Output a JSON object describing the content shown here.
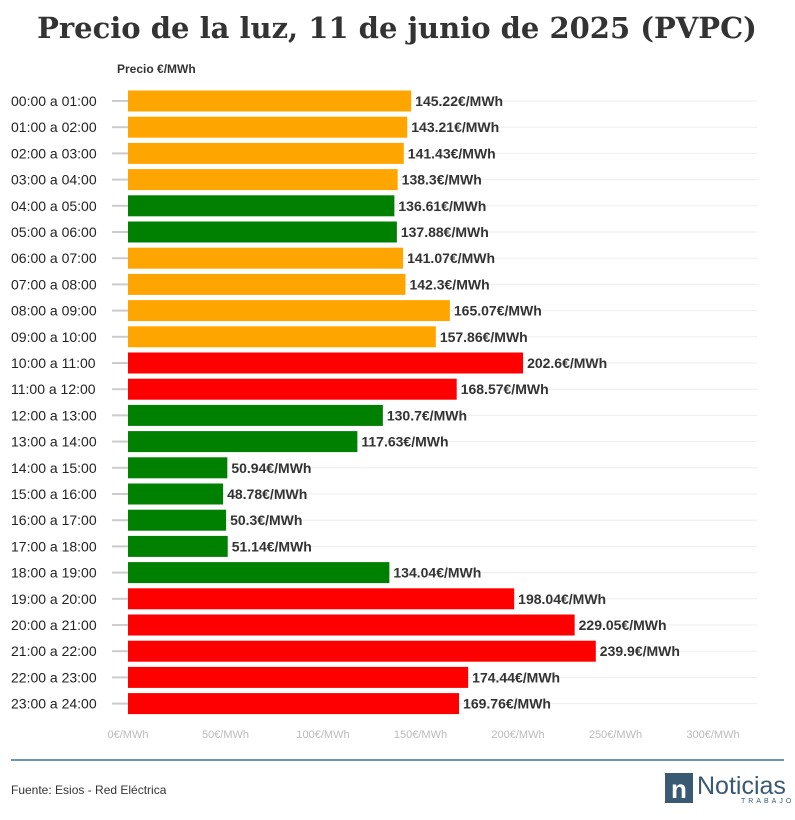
{
  "chart_data": {
    "type": "bar",
    "orientation": "horizontal",
    "title": "Precio de la luz, 11 de junio de 2025 (PVPC)",
    "ylabel": "Precio €/MWh",
    "xlim": [
      0,
      300
    ],
    "x_ticks": [
      {
        "value": 0,
        "label": "0€/MWh"
      },
      {
        "value": 50,
        "label": "50€/MWh"
      },
      {
        "value": 100,
        "label": "100€/MWh"
      },
      {
        "value": 150,
        "label": "150€/MWh"
      },
      {
        "value": 200,
        "label": "200€/MWh"
      },
      {
        "value": 250,
        "label": "250€/MWh"
      },
      {
        "value": 300,
        "label": "300€/MWh"
      }
    ],
    "categories": [
      "00:00 a 01:00",
      "01:00 a 02:00",
      "02:00 a 03:00",
      "03:00 a 04:00",
      "04:00 a 05:00",
      "05:00 a 06:00",
      "06:00 a 07:00",
      "07:00 a 08:00",
      "08:00 a 09:00",
      "09:00 a 10:00",
      "10:00 a 11:00",
      "11:00 a 12:00",
      "12:00 a 13:00",
      "13:00 a 14:00",
      "14:00 a 15:00",
      "15:00 a 16:00",
      "16:00 a 17:00",
      "17:00 a 18:00",
      "18:00 a 19:00",
      "19:00 a 20:00",
      "20:00 a 21:00",
      "21:00 a 22:00",
      "22:00 a 23:00",
      "23:00 a 24:00"
    ],
    "values": [
      145.22,
      143.21,
      141.43,
      138.3,
      136.61,
      137.88,
      141.07,
      142.3,
      165.07,
      157.86,
      202.6,
      168.57,
      130.7,
      117.63,
      50.94,
      48.78,
      50.3,
      51.14,
      134.04,
      198.04,
      229.05,
      239.9,
      174.44,
      169.76
    ],
    "value_labels": [
      "145.22€/MWh",
      "143.21€/MWh",
      "141.43€/MWh",
      "138.3€/MWh",
      "136.61€/MWh",
      "137.88€/MWh",
      "141.07€/MWh",
      "142.3€/MWh",
      "165.07€/MWh",
      "157.86€/MWh",
      "202.6€/MWh",
      "168.57€/MWh",
      "130.7€/MWh",
      "117.63€/MWh",
      "50.94€/MWh",
      "48.78€/MWh",
      "50.3€/MWh",
      "51.14€/MWh",
      "134.04€/MWh",
      "198.04€/MWh",
      "229.05€/MWh",
      "239.9€/MWh",
      "174.44€/MWh",
      "169.76€/MWh"
    ],
    "bar_levels": [
      "medium",
      "medium",
      "medium",
      "medium",
      "low",
      "low",
      "medium",
      "medium",
      "medium",
      "medium",
      "high",
      "high",
      "low",
      "low",
      "low",
      "low",
      "low",
      "low",
      "low",
      "high",
      "high",
      "high",
      "high",
      "high"
    ],
    "level_colors": {
      "low": "#008000",
      "medium": "#FFA500",
      "high": "#FF0000"
    },
    "grid": true
  },
  "footer": {
    "source": "Fuente: Esios - Red Eléctrica",
    "logo_letter": "n",
    "logo_name": "Noticias",
    "logo_sub": "TRABAJO"
  },
  "colors": {
    "divider": "#6a96b6",
    "logo_box": "#3a5a73"
  }
}
